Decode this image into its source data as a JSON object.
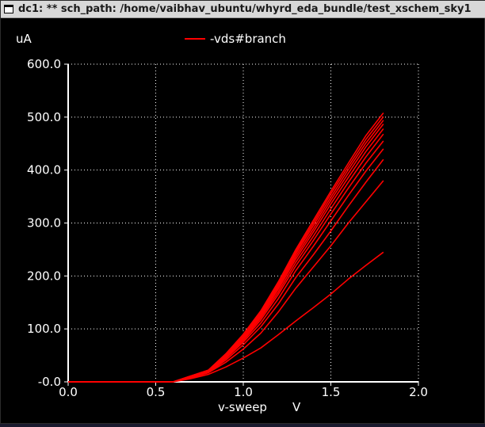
{
  "window": {
    "title": "dc1: ** sch_path: /home/vaibhav_ubuntu/whyrd_eda_bundle/test_xschem_sky1"
  },
  "colors": {
    "background": "#000000",
    "axis": "#ffffff",
    "grid": "#ffffff",
    "trace": "#ff0000",
    "text": "#ffffff"
  },
  "chart_data": {
    "type": "line",
    "title": "",
    "xlabel": "v-sweep",
    "xunit": "V",
    "ylabel": "uA",
    "xlim": [
      0.0,
      2.0
    ],
    "ylim": [
      0.0,
      600.0
    ],
    "x_ticks": [
      0.0,
      0.5,
      1.0,
      1.5,
      2.0
    ],
    "x_tick_labels": [
      "0.0",
      "0.5",
      "1.0",
      "1.5",
      "2.0"
    ],
    "y_ticks": [
      0,
      100,
      200,
      300,
      400,
      500,
      600
    ],
    "y_tick_labels": [
      "-0.0",
      "100.0",
      "200.0",
      "300.0",
      "400.0",
      "500.0",
      "600.0"
    ],
    "grid": true,
    "grid_style": "dotted",
    "legend": {
      "placement": "top-center",
      "entries": [
        "-vds#branch"
      ]
    },
    "x": [
      0.0,
      0.6,
      0.7,
      0.8,
      0.9,
      1.0,
      1.1,
      1.2,
      1.3,
      1.4,
      1.5,
      1.6,
      1.7,
      1.8
    ],
    "series": [
      {
        "values": [
          0,
          0,
          6,
          14,
          28,
          45,
          64,
          89,
          115,
          140,
          166,
          194,
          220,
          245
        ]
      },
      {
        "values": [
          0,
          0,
          8,
          17,
          37,
          62,
          92,
          132,
          177,
          217,
          257,
          300,
          340,
          380
        ]
      },
      {
        "values": [
          0,
          0,
          9,
          18,
          41,
          70,
          104,
          147,
          197,
          240,
          285,
          332,
          377,
          420
        ]
      },
      {
        "values": [
          0,
          0,
          9,
          19,
          44,
          75,
          111,
          157,
          210,
          256,
          304,
          352,
          398,
          440
        ]
      },
      {
        "values": [
          0,
          0,
          10,
          20,
          46,
          78,
          117,
          165,
          219,
          267,
          317,
          366,
          413,
          455
        ]
      },
      {
        "values": [
          0,
          0,
          10,
          20,
          48,
          81,
          121,
          170,
          226,
          275,
          327,
          377,
          425,
          468
        ]
      },
      {
        "values": [
          0,
          0,
          10,
          21,
          49,
          83,
          124,
          175,
          232,
          283,
          336,
          386,
          435,
          478
        ]
      },
      {
        "values": [
          0,
          0,
          11,
          21,
          50,
          85,
          127,
          179,
          237,
          289,
          343,
          394,
          444,
          487
        ]
      },
      {
        "values": [
          0,
          0,
          11,
          21,
          51,
          87,
          130,
          183,
          242,
          295,
          349,
          401,
          451,
          494
        ]
      },
      {
        "values": [
          0,
          0,
          11,
          22,
          52,
          88,
          132,
          186,
          246,
          300,
          355,
          407,
          458,
          501
        ]
      },
      {
        "values": [
          0,
          0,
          11,
          22,
          53,
          90,
          134,
          189,
          250,
          305,
          360,
          413,
          465,
          508
        ]
      }
    ]
  }
}
